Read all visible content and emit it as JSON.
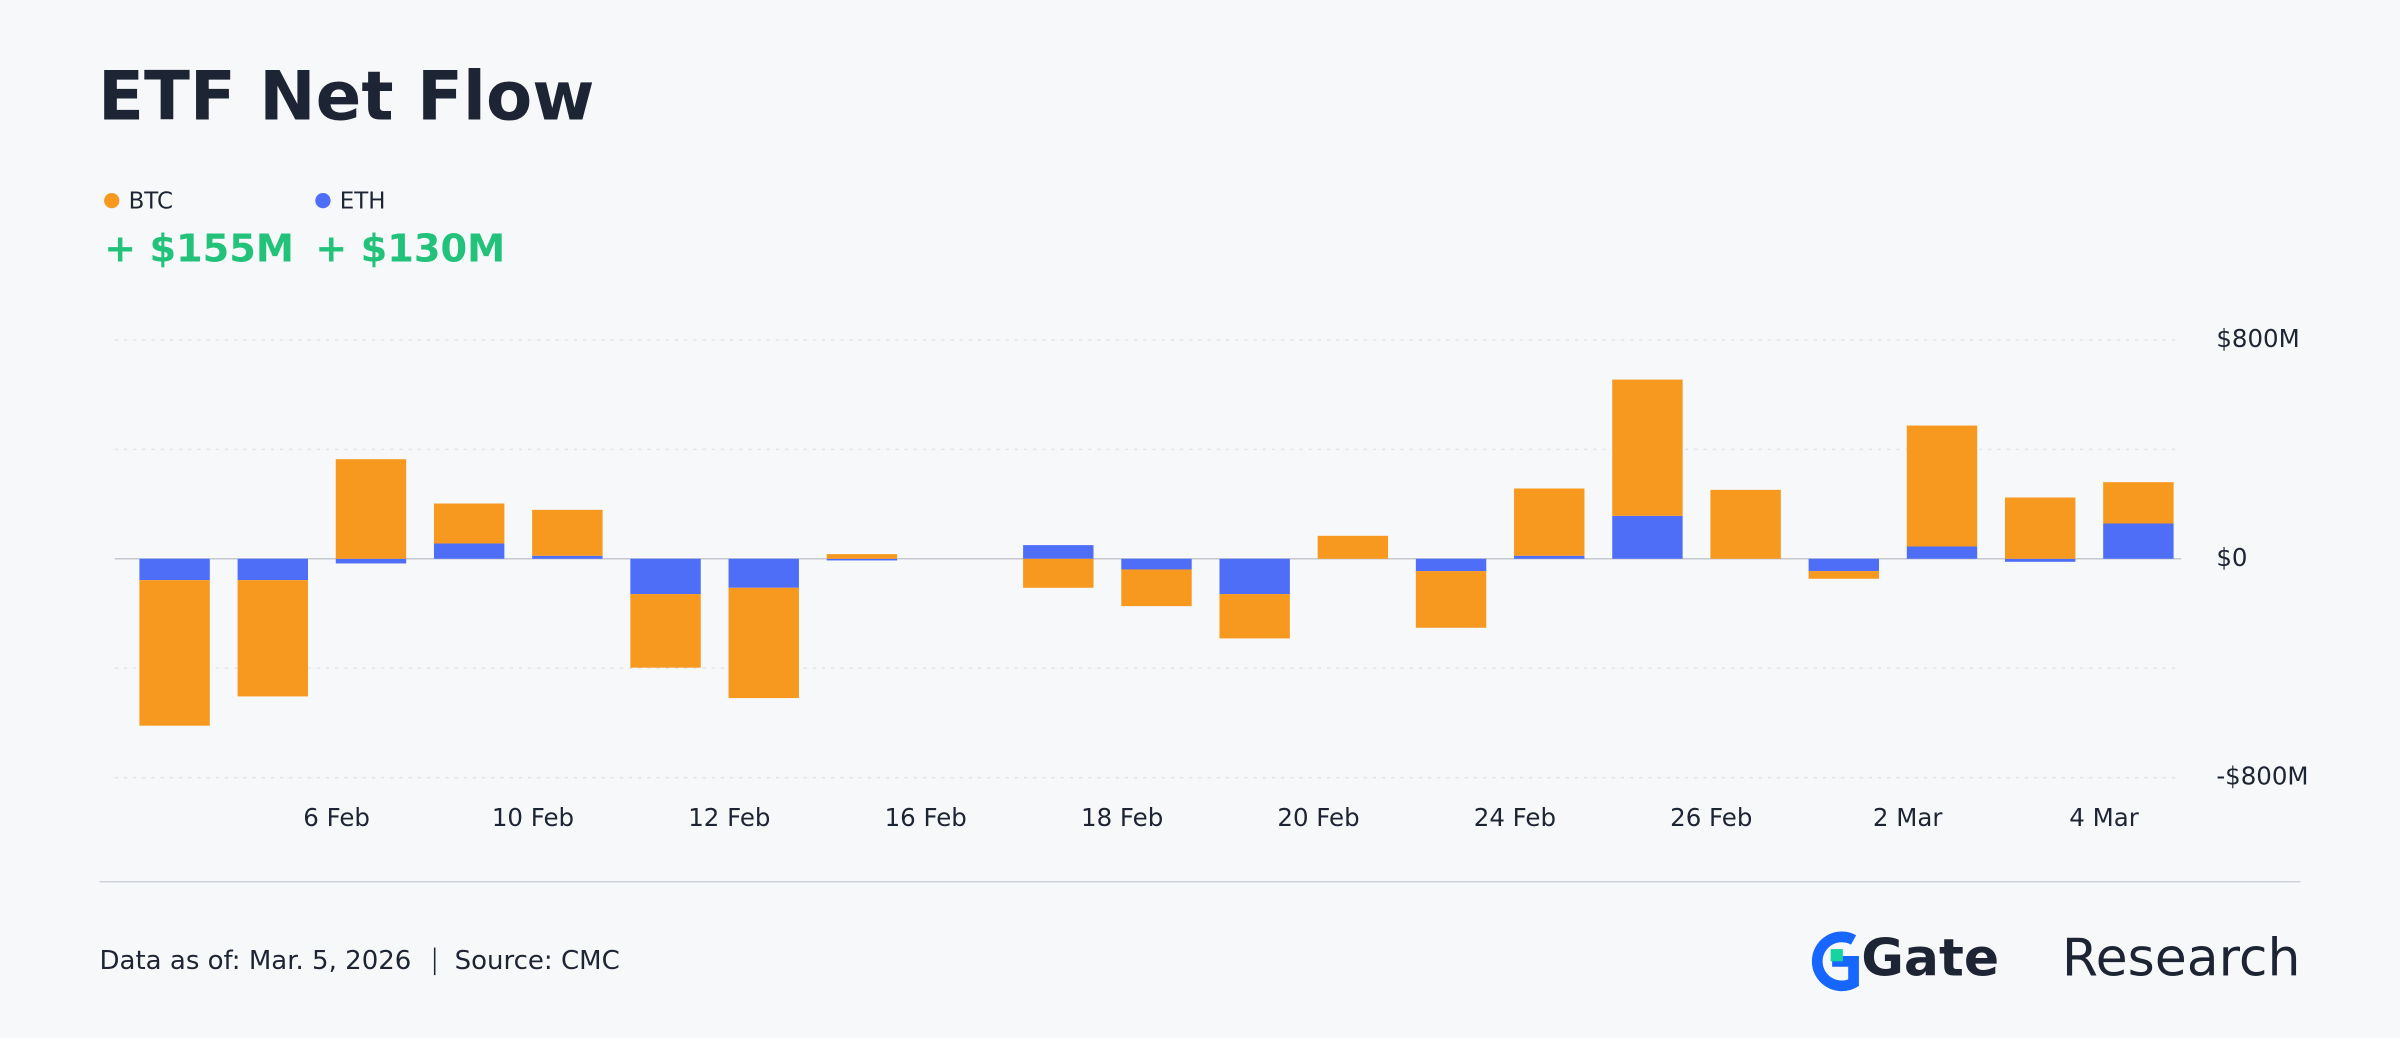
{
  "chart_data": {
    "type": "stacked_bar",
    "title": "ETF Net Flow",
    "categories": [
      null,
      null,
      "6 Feb",
      null,
      "10 Feb",
      null,
      "12 Feb",
      null,
      "16 Feb",
      null,
      "18 Feb",
      null,
      "20 Feb",
      null,
      "24 Feb",
      null,
      "26 Feb",
      null,
      "2 Mar",
      null,
      "4 Mar"
    ],
    "series": [
      {
        "name": "ETH",
        "color": "#4f6ef7",
        "total_label": "+ $130M",
        "values": [
          -78,
          -78,
          -17,
          56,
          11,
          -129,
          -106,
          -6,
          null,
          50,
          -39,
          -129,
          0,
          -45,
          11,
          157,
          0,
          -45,
          45,
          -11,
          129
        ]
      },
      {
        "name": "BTC",
        "color": "#f7981f",
        "total_label": "+ $155M",
        "values": [
          -532,
          -425,
          364,
          146,
          168,
          -269,
          -403,
          17,
          null,
          -106,
          -134,
          -162,
          84,
          -207,
          246,
          498,
          252,
          -28,
          442,
          224,
          151
        ]
      }
    ],
    "legend_order": [
      1,
      0
    ],
    "ylim": [
      -800,
      800
    ],
    "yticks": [
      {
        "value": -800,
        "label": "-$800M"
      },
      {
        "value": -400,
        "label": null
      },
      {
        "value": 0,
        "label": "$0"
      },
      {
        "value": 400,
        "label": null
      },
      {
        "value": 800,
        "label": "$800M"
      }
    ],
    "grid": true
  },
  "footer": {
    "date": "Data as of: Mar. 5, 2026",
    "source": "Source: CMC",
    "logo": {
      "name": "Gate",
      "suffix": "Research"
    }
  }
}
